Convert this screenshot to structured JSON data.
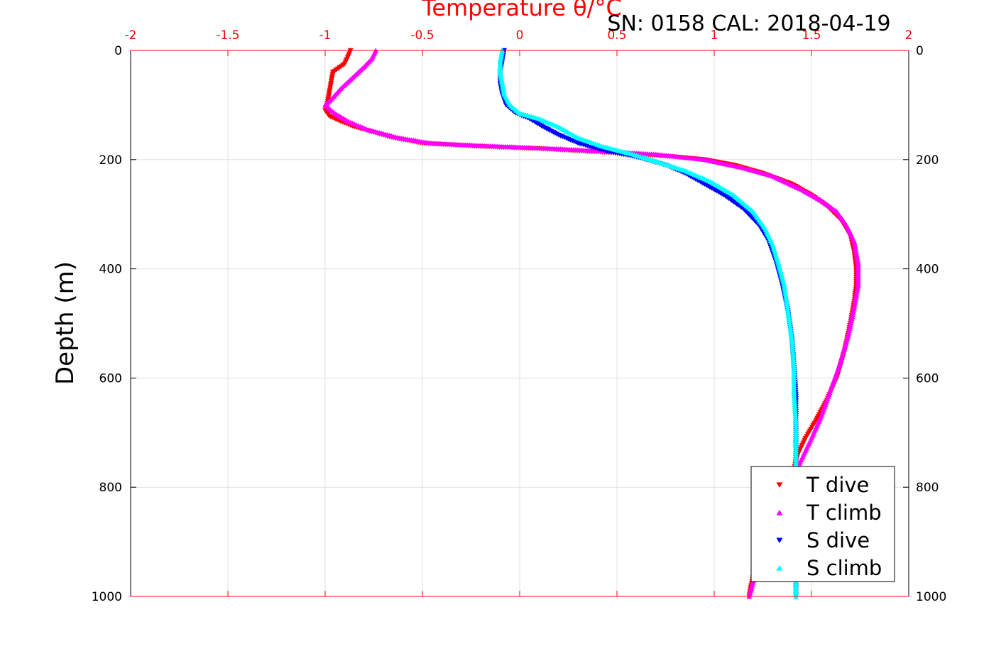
{
  "chart_data": {
    "type": "scatter",
    "title": "Temperature θ/°C",
    "subtitle": "SN: 0158  CAL: 2018-04-19",
    "xlabel": "Temperature θ/°C",
    "ylabel": "Depth (m)",
    "xlim": [
      -2,
      2
    ],
    "ylim": [
      1000,
      0
    ],
    "y_reversed": true,
    "x_ticks": [
      "-2",
      "-1.5",
      "-1",
      "-0.5",
      "0",
      "0.5",
      "1",
      "1.5",
      "2"
    ],
    "y_ticks": [
      "0",
      "200",
      "400",
      "600",
      "800",
      "1000"
    ],
    "grid": true,
    "legend_position": "bottom-right",
    "colors": {
      "axis": "#ff0000",
      "grid": "#e0e0e0"
    },
    "series": [
      {
        "name": "T dive",
        "marker": "triangle-down",
        "color": "#ff0000",
        "points": [
          [
            -0.87,
            0
          ],
          [
            -0.88,
            10
          ],
          [
            -0.9,
            25
          ],
          [
            -0.96,
            40
          ],
          [
            -0.97,
            60
          ],
          [
            -0.98,
            80
          ],
          [
            -0.99,
            100
          ],
          [
            -1.0,
            110
          ],
          [
            -0.98,
            120
          ],
          [
            -0.92,
            130
          ],
          [
            -0.85,
            140
          ],
          [
            -0.75,
            150
          ],
          [
            -0.65,
            160
          ],
          [
            -0.5,
            170
          ],
          [
            -0.2,
            176
          ],
          [
            0.1,
            180
          ],
          [
            0.35,
            185
          ],
          [
            0.6,
            190
          ],
          [
            0.8,
            195
          ],
          [
            0.95,
            200
          ],
          [
            1.1,
            210
          ],
          [
            1.25,
            225
          ],
          [
            1.4,
            245
          ],
          [
            1.5,
            265
          ],
          [
            1.58,
            285
          ],
          [
            1.65,
            310
          ],
          [
            1.7,
            340
          ],
          [
            1.72,
            370
          ],
          [
            1.73,
            400
          ],
          [
            1.73,
            430
          ],
          [
            1.72,
            460
          ],
          [
            1.7,
            500
          ],
          [
            1.67,
            550
          ],
          [
            1.63,
            600
          ],
          [
            1.58,
            640
          ],
          [
            1.52,
            680
          ],
          [
            1.47,
            710
          ],
          [
            1.43,
            740
          ],
          [
            1.4,
            780
          ],
          [
            1.35,
            830
          ],
          [
            1.3,
            870
          ],
          [
            1.25,
            910
          ],
          [
            1.21,
            950
          ],
          [
            1.19,
            980
          ],
          [
            1.18,
            1000
          ]
        ]
      },
      {
        "name": "T climb",
        "marker": "triangle-up",
        "color": "#ff00ff",
        "points": [
          [
            -0.74,
            0
          ],
          [
            -0.76,
            15
          ],
          [
            -0.8,
            30
          ],
          [
            -0.86,
            50
          ],
          [
            -0.92,
            70
          ],
          [
            -0.97,
            90
          ],
          [
            -1.0,
            100
          ],
          [
            -0.95,
            115
          ],
          [
            -0.88,
            130
          ],
          [
            -0.78,
            145
          ],
          [
            -0.62,
            160
          ],
          [
            -0.45,
            170
          ],
          [
            -0.15,
            175
          ],
          [
            0.2,
            180
          ],
          [
            0.45,
            185
          ],
          [
            0.7,
            190
          ],
          [
            0.95,
            200
          ],
          [
            1.15,
            215
          ],
          [
            1.3,
            230
          ],
          [
            1.45,
            255
          ],
          [
            1.55,
            275
          ],
          [
            1.63,
            295
          ],
          [
            1.68,
            320
          ],
          [
            1.72,
            350
          ],
          [
            1.74,
            390
          ],
          [
            1.74,
            430
          ],
          [
            1.72,
            470
          ],
          [
            1.69,
            520
          ],
          [
            1.65,
            570
          ],
          [
            1.6,
            620
          ],
          [
            1.55,
            670
          ],
          [
            1.5,
            710
          ],
          [
            1.46,
            740
          ],
          [
            1.42,
            770
          ],
          [
            1.38,
            800
          ],
          [
            1.34,
            840
          ],
          [
            1.29,
            880
          ],
          [
            1.25,
            920
          ],
          [
            1.21,
            960
          ],
          [
            1.18,
            1000
          ]
        ]
      },
      {
        "name": "S dive",
        "marker": "triangle-down",
        "color": "#0000ff",
        "points": [
          [
            -0.08,
            0
          ],
          [
            -0.09,
            20
          ],
          [
            -0.1,
            40
          ],
          [
            -0.1,
            60
          ],
          [
            -0.09,
            80
          ],
          [
            -0.07,
            100
          ],
          [
            -0.02,
            115
          ],
          [
            0.05,
            125
          ],
          [
            0.12,
            140
          ],
          [
            0.2,
            155
          ],
          [
            0.3,
            170
          ],
          [
            0.45,
            185
          ],
          [
            0.6,
            195
          ],
          [
            0.75,
            210
          ],
          [
            0.85,
            225
          ],
          [
            0.95,
            245
          ],
          [
            1.05,
            265
          ],
          [
            1.15,
            290
          ],
          [
            1.23,
            320
          ],
          [
            1.28,
            350
          ],
          [
            1.32,
            390
          ],
          [
            1.35,
            430
          ],
          [
            1.38,
            480
          ],
          [
            1.4,
            530
          ],
          [
            1.41,
            580
          ],
          [
            1.42,
            630
          ],
          [
            1.42,
            680
          ],
          [
            1.42,
            730
          ],
          [
            1.42,
            780
          ],
          [
            1.42,
            830
          ],
          [
            1.42,
            880
          ],
          [
            1.42,
            930
          ],
          [
            1.42,
            980
          ],
          [
            1.42,
            1000
          ]
        ]
      },
      {
        "name": "S climb",
        "marker": "triangle-up",
        "color": "#00ffff",
        "points": [
          [
            -0.09,
            0
          ],
          [
            -0.1,
            20
          ],
          [
            -0.1,
            40
          ],
          [
            -0.09,
            60
          ],
          [
            -0.08,
            80
          ],
          [
            -0.05,
            100
          ],
          [
            0.0,
            115
          ],
          [
            0.1,
            125
          ],
          [
            0.2,
            140
          ],
          [
            0.3,
            160
          ],
          [
            0.42,
            175
          ],
          [
            0.58,
            190
          ],
          [
            0.72,
            205
          ],
          [
            0.85,
            220
          ],
          [
            0.98,
            240
          ],
          [
            1.1,
            265
          ],
          [
            1.2,
            295
          ],
          [
            1.26,
            325
          ],
          [
            1.3,
            355
          ],
          [
            1.33,
            390
          ],
          [
            1.36,
            430
          ],
          [
            1.38,
            480
          ],
          [
            1.4,
            530
          ],
          [
            1.41,
            580
          ],
          [
            1.41,
            630
          ],
          [
            1.42,
            680
          ],
          [
            1.42,
            730
          ],
          [
            1.42,
            780
          ],
          [
            1.42,
            830
          ],
          [
            1.42,
            880
          ],
          [
            1.42,
            930
          ],
          [
            1.42,
            980
          ],
          [
            1.42,
            1000
          ]
        ]
      }
    ]
  }
}
